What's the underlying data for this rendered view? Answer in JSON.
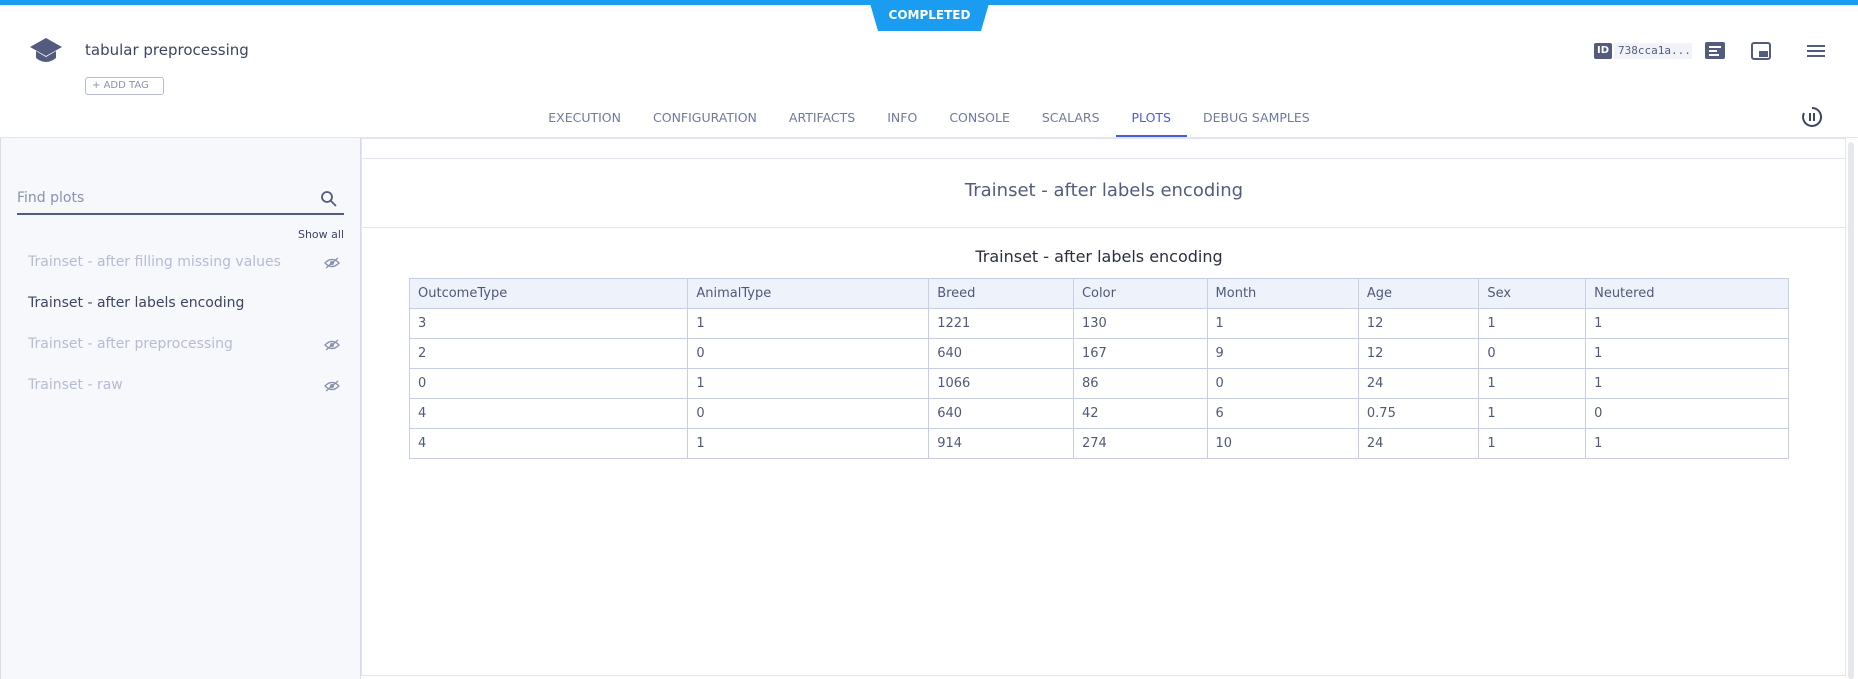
{
  "header": {
    "status": "COMPLETED",
    "title": "tabular preprocessing",
    "add_tag": "ADD TAG",
    "id_label": "ID",
    "id": "738cca1a..."
  },
  "tabs": {
    "items": [
      "EXECUTION",
      "CONFIGURATION",
      "ARTIFACTS",
      "INFO",
      "CONSOLE",
      "SCALARS",
      "PLOTS",
      "DEBUG SAMPLES"
    ],
    "active": 6
  },
  "sidebar": {
    "search_placeholder": "Find plots",
    "show_all": "Show all",
    "plots": [
      {
        "label": "Trainset - after filling missing values",
        "hidden": true
      },
      {
        "label": "Trainset - after labels encoding",
        "hidden": false
      },
      {
        "label": "Trainset - after preprocessing",
        "hidden": true
      },
      {
        "label": "Trainset - raw",
        "hidden": true
      }
    ]
  },
  "panel": {
    "title": "Trainset - after labels encoding",
    "table": {
      "title": "Trainset - after labels encoding",
      "columns": [
        "OutcomeType",
        "AnimalType",
        "Breed",
        "Color",
        "Month",
        "Age",
        "Sex",
        "Neutered"
      ],
      "rows": [
        [
          3,
          1,
          1221,
          130,
          1,
          12,
          1,
          1
        ],
        [
          2,
          0,
          640,
          167,
          9,
          12,
          0,
          1
        ],
        [
          0,
          1,
          1066,
          86,
          0,
          24,
          1,
          1
        ],
        [
          4,
          0,
          640,
          42,
          6,
          0.75,
          1,
          0
        ],
        [
          4,
          1,
          914,
          274,
          10,
          24,
          1,
          1
        ]
      ]
    }
  }
}
